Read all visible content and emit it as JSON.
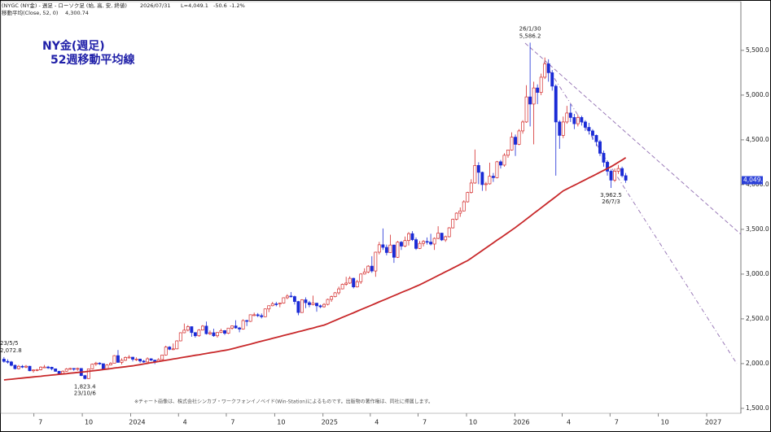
{
  "chart_data": {
    "type": "candlestick",
    "title": "NY金(週足)",
    "subtitle": "52週移動平均線",
    "header": [
      "(NYGC (NY金) - 週足 - ローソク足 (始, 高, 安, 終値)",
      "2026/07/31",
      "L=4,049.1",
      "-50.6",
      "-1.2%"
    ],
    "footnote": "※チャート画像は、株式会社シンカブ・ワークフォンイノベイド(Win-Station)によるものです。出版物の著作権は、同社に帰属します。",
    "up_color": "#d42a2a",
    "down_color": "#1a2bd6",
    "last_price_label": "4,049.1",
    "x": [
      "2023-05-05",
      "2023-05-12",
      "2023-05-19",
      "2023-05-26",
      "2023-06-02",
      "2023-06-09",
      "2023-06-16",
      "2023-06-23",
      "2023-06-30",
      "2023-07-07",
      "2023-07-14",
      "2023-07-21",
      "2023-07-28",
      "2023-08-04",
      "2023-08-11",
      "2023-08-18",
      "2023-08-25",
      "2023-09-01",
      "2023-09-08",
      "2023-09-15",
      "2023-09-22",
      "2023-09-29",
      "2023-10-06",
      "2023-10-13",
      "2023-10-20",
      "2023-10-27",
      "2023-11-03",
      "2023-11-10",
      "2023-11-17",
      "2023-11-24",
      "2023-12-01",
      "2023-12-08",
      "2023-12-15",
      "2023-12-22",
      "2023-12-29",
      "2024-01-05",
      "2024-01-12",
      "2024-01-19",
      "2024-01-26",
      "2024-02-02",
      "2024-02-09",
      "2024-02-16",
      "2024-02-23",
      "2024-03-01",
      "2024-03-08",
      "2024-03-15",
      "2024-03-22",
      "2024-03-29",
      "2024-04-05",
      "2024-04-12",
      "2024-04-19",
      "2024-04-26",
      "2024-05-03",
      "2024-05-10",
      "2024-05-17",
      "2024-05-24",
      "2024-05-31",
      "2024-06-07",
      "2024-06-14",
      "2024-06-21",
      "2024-06-28",
      "2024-07-05",
      "2024-07-12",
      "2024-07-19",
      "2024-07-26",
      "2024-08-02",
      "2024-08-09",
      "2024-08-16",
      "2024-08-23",
      "2024-08-30",
      "2024-09-06",
      "2024-09-13",
      "2024-09-20",
      "2024-09-27",
      "2024-10-04",
      "2024-10-11",
      "2024-10-18",
      "2024-10-25",
      "2024-11-01",
      "2024-11-08",
      "2024-11-15",
      "2024-11-22",
      "2024-11-29",
      "2024-12-06",
      "2024-12-13",
      "2024-12-20",
      "2024-12-27",
      "2025-01-03",
      "2025-01-10",
      "2025-01-17",
      "2025-01-24",
      "2025-01-31",
      "2025-02-07",
      "2025-02-14",
      "2025-02-21",
      "2025-02-28",
      "2025-03-07",
      "2025-03-14",
      "2025-03-21",
      "2025-03-28",
      "2025-04-04",
      "2025-04-11",
      "2025-04-18",
      "2025-04-25",
      "2025-05-02",
      "2025-05-09",
      "2025-05-16",
      "2025-05-23",
      "2025-05-30",
      "2025-06-06",
      "2025-06-13",
      "2025-06-20",
      "2025-06-27",
      "2025-07-04",
      "2025-07-11",
      "2025-07-18",
      "2025-07-25",
      "2025-08-01",
      "2025-08-08",
      "2025-08-15",
      "2025-08-22",
      "2025-08-29",
      "2025-09-05",
      "2025-09-12",
      "2025-09-19",
      "2025-09-26",
      "2025-10-03",
      "2025-10-10",
      "2025-10-17",
      "2025-10-24",
      "2025-10-31",
      "2025-11-07",
      "2025-11-14",
      "2025-11-21",
      "2025-11-28",
      "2025-12-05",
      "2025-12-12",
      "2025-12-19",
      "2025-12-26",
      "2026-01-02",
      "2026-01-09",
      "2026-01-16",
      "2026-01-23",
      "2026-01-30",
      "2026-02-06",
      "2026-02-13",
      "2026-02-20",
      "2026-02-27",
      "2026-03-06",
      "2026-03-13",
      "2026-03-20",
      "2026-03-27",
      "2026-04-03",
      "2026-04-10",
      "2026-04-17",
      "2026-04-24",
      "2026-05-01",
      "2026-05-08",
      "2026-05-15",
      "2026-05-22",
      "2026-05-29",
      "2026-06-05",
      "2026-06-12",
      "2026-06-19",
      "2026-06-26",
      "2026-07-03",
      "2026-07-10",
      "2026-07-17",
      "2026-07-24",
      "2026-07-31"
    ],
    "open": [
      2050,
      2025,
      2019,
      1981,
      1944,
      1970,
      1961,
      1971,
      1920,
      1929,
      1932,
      1961,
      1962,
      1960,
      1942,
      1914,
      1889,
      1915,
      1940,
      1946,
      1945,
      1946,
      1866,
      1833,
      1941,
      1994,
      2006,
      1999,
      1939,
      1985,
      2003,
      2089,
      2014,
      2037,
      2069,
      2072,
      2049,
      2051,
      2029,
      2018,
      2054,
      2038,
      2024,
      2045,
      2096,
      2185,
      2161,
      2165,
      2254,
      2345,
      2374,
      2413,
      2347,
      2311,
      2375,
      2419,
      2334,
      2345,
      2311,
      2348,
      2369,
      2339,
      2397,
      2421,
      2399,
      2386,
      2481,
      2472,
      2546,
      2546,
      2536,
      2524,
      2611,
      2647,
      2668,
      2667,
      2676,
      2736,
      2755,
      2749,
      2694,
      2571,
      2713,
      2681,
      2659,
      2675,
      2646,
      2635,
      2662,
      2717,
      2748,
      2791,
      2835,
      2886,
      2900,
      2953,
      2857,
      2915,
      3001,
      3024,
      3089,
      3035,
      3245,
      3328,
      3299,
      3241,
      3325,
      3188,
      3357,
      3313,
      3375,
      3452,
      3385,
      3287,
      3343,
      3365,
      3358,
      3336,
      3399,
      3458,
      3382,
      3418,
      3517,
      3613,
      3681,
      3706,
      3808,
      3912,
      4018,
      4214,
      4137,
      4000,
      4009,
      4094,
      4078,
      4255,
      4218,
      4328,
      4387,
      4530,
      4450,
      4600,
      4700,
      4980,
      4900,
      5080,
      5030,
      5200,
      5350,
      5250,
      5100,
      4700,
      4550,
      4700,
      4800,
      4750,
      4680,
      4750,
      4700,
      4640,
      4600,
      4550,
      4480,
      4350,
      4250,
      4150,
      4050,
      4150,
      4180,
      4099.7
    ],
    "high": [
      2072.8,
      2048,
      2030,
      1990,
      1985,
      1985,
      1985,
      1975,
      1935,
      1940,
      1970,
      1985,
      1975,
      1965,
      1945,
      1920,
      1925,
      1950,
      1953,
      1950,
      1955,
      1950,
      1875,
      1945,
      2000,
      2020,
      2015,
      2000,
      1995,
      2015,
      2095,
      2152,
      2060,
      2080,
      2095,
      2075,
      2070,
      2055,
      2040,
      2070,
      2060,
      2045,
      2060,
      2100,
      2200,
      2195,
      2225,
      2260,
      2350,
      2448,
      2430,
      2415,
      2350,
      2385,
      2430,
      2470,
      2370,
      2390,
      2350,
      2390,
      2375,
      2400,
      2425,
      2485,
      2410,
      2495,
      2490,
      2550,
      2570,
      2565,
      2560,
      2615,
      2650,
      2690,
      2690,
      2680,
      2740,
      2775,
      2800,
      2760,
      2700,
      2720,
      2740,
      2700,
      2760,
      2680,
      2660,
      2675,
      2725,
      2760,
      2800,
      2860,
      2895,
      2970,
      2975,
      2960,
      2935,
      3010,
      3065,
      3100,
      3200,
      3250,
      3360,
      3510,
      3330,
      3440,
      3330,
      3370,
      3370,
      3420,
      3470,
      3480,
      3410,
      3370,
      3380,
      3410,
      3450,
      3410,
      3535,
      3460,
      3430,
      3525,
      3620,
      3690,
      3745,
      3825,
      3920,
      4060,
      4392,
      4250,
      4145,
      4030,
      4245,
      4130,
      4265,
      4275,
      4350,
      4390,
      4585,
      4560,
      4620,
      4720,
      5110,
      5586.2,
      5150,
      5120,
      5240,
      5420,
      5400,
      5280,
      5120,
      4720,
      4760,
      4880,
      4900,
      4790,
      4780,
      4770,
      4720,
      4690,
      4620,
      4560,
      4500,
      4380,
      4270,
      4170,
      4180,
      4220,
      4200,
      4130
    ],
    "low": [
      2010,
      2000,
      1970,
      1935,
      1935,
      1950,
      1950,
      1915,
      1900,
      1915,
      1925,
      1955,
      1940,
      1925,
      1910,
      1885,
      1885,
      1910,
      1930,
      1920,
      1920,
      1860,
      1823.4,
      1830,
      1935,
      1975,
      1985,
      1935,
      1935,
      1980,
      2000,
      2010,
      1990,
      2030,
      2060,
      2025,
      2030,
      2010,
      2010,
      2015,
      2030,
      1995,
      2020,
      2040,
      2090,
      2150,
      2150,
      2160,
      2250,
      2340,
      2360,
      2300,
      2290,
      2300,
      2370,
      2325,
      2320,
      2300,
      2290,
      2340,
      2320,
      2330,
      2380,
      2390,
      2350,
      2380,
      2420,
      2465,
      2530,
      2520,
      2505,
      2520,
      2575,
      2640,
      2640,
      2630,
      2670,
      2720,
      2740,
      2660,
      2540,
      2565,
      2620,
      2630,
      2650,
      2580,
      2620,
      2625,
      2650,
      2690,
      2740,
      2770,
      2830,
      2870,
      2890,
      2840,
      2850,
      2890,
      2995,
      3010,
      3015,
      2970,
      3220,
      3270,
      3210,
      3240,
      3125,
      3180,
      3270,
      3300,
      3320,
      3370,
      3270,
      3280,
      3310,
      3330,
      3320,
      3270,
      3390,
      3370,
      3360,
      3410,
      3510,
      3600,
      3640,
      3700,
      3800,
      3900,
      4010,
      4005,
      3930,
      3930,
      4000,
      4030,
      4070,
      4180,
      4200,
      4300,
      4380,
      4320,
      4440,
      4570,
      4690,
      4650,
      4450,
      4900,
      5000,
      5180,
      5150,
      5050,
      4100,
      4400,
      4520,
      4680,
      4700,
      4620,
      4650,
      4660,
      4600,
      4560,
      4500,
      4430,
      4320,
      4200,
      4100,
      3962.5,
      4030,
      4120,
      4080,
      4020
    ],
    "close": [
      2025,
      2019,
      1981,
      1944,
      1970,
      1961,
      1971,
      1920,
      1929,
      1932,
      1961,
      1962,
      1960,
      1942,
      1914,
      1889,
      1915,
      1940,
      1946,
      1945,
      1946,
      1866,
      1833,
      1941,
      1994,
      2006,
      1999,
      1939,
      1985,
      2003,
      2089,
      2014,
      2037,
      2069,
      2072,
      2049,
      2051,
      2029,
      2018,
      2054,
      2038,
      2024,
      2045,
      2096,
      2185,
      2161,
      2165,
      2254,
      2345,
      2374,
      2413,
      2347,
      2311,
      2375,
      2419,
      2334,
      2345,
      2311,
      2348,
      2369,
      2339,
      2397,
      2421,
      2399,
      2386,
      2481,
      2472,
      2546,
      2546,
      2536,
      2524,
      2611,
      2647,
      2668,
      2667,
      2676,
      2736,
      2755,
      2749,
      2694,
      2571,
      2713,
      2681,
      2659,
      2675,
      2646,
      2635,
      2662,
      2717,
      2748,
      2791,
      2835,
      2886,
      2900,
      2953,
      2857,
      2915,
      3001,
      3024,
      3089,
      3035,
      3245,
      3328,
      3299,
      3241,
      3325,
      3188,
      3357,
      3313,
      3375,
      3452,
      3385,
      3287,
      3343,
      3365,
      3358,
      3336,
      3399,
      3458,
      3382,
      3418,
      3517,
      3613,
      3681,
      3706,
      3808,
      3912,
      4018,
      4214,
      4137,
      4000,
      4009,
      4094,
      4078,
      4255,
      4218,
      4328,
      4387,
      4530,
      4450,
      4600,
      4700,
      4980,
      4900,
      5080,
      5030,
      5200,
      5350,
      5250,
      5100,
      4700,
      4550,
      4700,
      4800,
      4750,
      4680,
      4750,
      4700,
      4640,
      4600,
      4550,
      4480,
      4350,
      4250,
      4150,
      4050,
      4150,
      4180,
      4099.7,
      4049.1
    ],
    "overlays": [
      {
        "name": "移動平均(Close, 52, 0)",
        "color": "#c8282a",
        "last_label": "4,300.74",
        "values": [
          1818,
          1822,
          1826,
          1830,
          1835,
          1839,
          1843,
          1847,
          1851,
          1855,
          1859,
          1864,
          1868,
          1872,
          1876,
          1880,
          1884,
          1888,
          1893,
          1897,
          1901,
          1905,
          1909,
          1914,
          1919,
          1924,
          1929,
          1934,
          1939,
          1944,
          1950,
          1955,
          1960,
          1965,
          1970,
          1975,
          1982,
          1989,
          1996,
          2003,
          2010,
          2017,
          2023,
          2030,
          2037,
          2044,
          2051,
          2058,
          2065,
          2072,
          2079,
          2086,
          2093,
          2099,
          2106,
          2113,
          2120,
          2127,
          2134,
          2141,
          2148,
          2155,
          2166,
          2176,
          2187,
          2197,
          2208,
          2218,
          2229,
          2240,
          2250,
          2261,
          2271,
          2282,
          2292,
          2303,
          2314,
          2324,
          2335,
          2345,
          2356,
          2366,
          2377,
          2388,
          2398,
          2409,
          2419,
          2430,
          2447,
          2465,
          2482,
          2499,
          2517,
          2534,
          2551,
          2568,
          2586,
          2603,
          2620,
          2638,
          2655,
          2672,
          2690,
          2707,
          2724,
          2742,
          2759,
          2776,
          2794,
          2811,
          2828,
          2846,
          2863,
          2880,
          2901,
          2922,
          2942,
          2963,
          2984,
          3005,
          3026,
          3046,
          3067,
          3088,
          3109,
          3130,
          3150,
          3178,
          3207,
          3235,
          3264,
          3292,
          3321,
          3349,
          3378,
          3406,
          3435,
          3463,
          3492,
          3520,
          3552,
          3583,
          3615,
          3646,
          3678,
          3709,
          3741,
          3772,
          3804,
          3835,
          3867,
          3898,
          3930,
          3951,
          3972,
          3992,
          4013,
          4034,
          4055,
          4076,
          4096,
          4117,
          4138,
          4159,
          4180,
          4200,
          4225,
          4250,
          4275,
          4300.74
        ]
      }
    ],
    "annotations": [
      {
        "date_label": "23/5/5",
        "value": 2072.8,
        "value_label": "2,072.8"
      },
      {
        "date_label": "23/10/6",
        "value": 1823.4,
        "value_label": "1,823.4"
      },
      {
        "date_label": "26/1/30",
        "value": 5586.2,
        "value_label": "5,586.2"
      },
      {
        "date_label": "26/7/3",
        "value": 3962.5,
        "value_label": "3,962.5"
      }
    ],
    "xlim": [
      "2023-04-29",
      "2027-03-07"
    ],
    "xticks": [
      {
        "value": "2023-07-01",
        "label": "7"
      },
      {
        "value": "2023-10-01",
        "label": "10"
      },
      {
        "value": "2024-01-01",
        "label": "2024"
      },
      {
        "value": "2024-04-01",
        "label": "4"
      },
      {
        "value": "2024-07-01",
        "label": "7"
      },
      {
        "value": "2024-10-01",
        "label": "10"
      },
      {
        "value": "2025-01-01",
        "label": "2025"
      },
      {
        "value": "2025-04-01",
        "label": "4"
      },
      {
        "value": "2025-07-01",
        "label": "7"
      },
      {
        "value": "2025-10-01",
        "label": "10"
      },
      {
        "value": "2026-01-01",
        "label": "2026"
      },
      {
        "value": "2026-04-01",
        "label": "4"
      },
      {
        "value": "2026-07-01",
        "label": "7"
      },
      {
        "value": "2026-10-01",
        "label": "10"
      },
      {
        "value": "2027-01-01",
        "label": "2027"
      }
    ],
    "ylim": [
      1445,
      5990
    ],
    "yticks": [
      {
        "value": 1500,
        "label": "1,500.0"
      },
      {
        "value": 2000,
        "label": "2,000.0"
      },
      {
        "value": 2500,
        "label": "2,500.0"
      },
      {
        "value": 3000,
        "label": "3,000.0"
      },
      {
        "value": 3500,
        "label": "3,500.0"
      },
      {
        "value": 4000,
        "label": "4,000.0"
      },
      {
        "value": 4500,
        "label": "4,500.0"
      },
      {
        "value": 5000,
        "label": "5,000.0"
      },
      {
        "value": 5500,
        "label": "5,500.0"
      }
    ]
  }
}
